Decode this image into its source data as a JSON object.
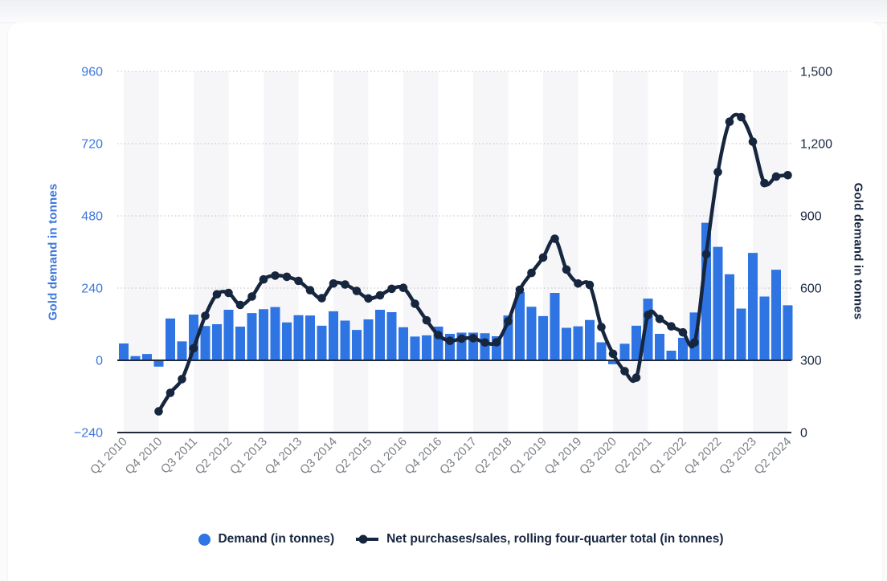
{
  "axes": {
    "left_title": "Gold demand in tonnes",
    "right_title": "Gold demand in tonnes"
  },
  "legend": {
    "items": [
      {
        "label": "Demand (in tonnes)",
        "marker": "circle"
      },
      {
        "label": "Net purchases/sales, rolling four-quarter total (in tonnes)",
        "marker": "line-dot"
      }
    ]
  },
  "colors": {
    "bar_blue": "#2e74e3",
    "line_navy": "#17263f",
    "left_axis_blue": "#3d77dd",
    "right_axis_navy": "#17263f",
    "x_label_gray": "#7d8187",
    "grid_dotted": "#c9cbd0",
    "axis_line": "#20293a",
    "stripe_gray": "#f6f6f8",
    "card_white": "#ffffff"
  },
  "chart_data": {
    "type": "bar+line",
    "title": "",
    "grid": "horizontal-dotted",
    "categories": [
      "Q1 2010",
      "Q2 2010",
      "Q3 2010",
      "Q4 2010",
      "Q1 2011",
      "Q2 2011",
      "Q3 2011",
      "Q4 2011",
      "Q1 2012",
      "Q2 2012",
      "Q3 2012",
      "Q4 2012",
      "Q1 2013",
      "Q2 2013",
      "Q3 2013",
      "Q4 2013",
      "Q1 2014",
      "Q2 2014",
      "Q3 2014",
      "Q4 2014",
      "Q1 2015",
      "Q2 2015",
      "Q3 2015",
      "Q4 2015",
      "Q1 2016",
      "Q2 2016",
      "Q3 2016",
      "Q4 2016",
      "Q1 2017",
      "Q2 2017",
      "Q3 2017",
      "Q4 2017",
      "Q1 2018",
      "Q2 2018",
      "Q3 2018",
      "Q4 2018",
      "Q1 2019",
      "Q2 2019",
      "Q3 2019",
      "Q4 2019",
      "Q1 2020",
      "Q2 2020",
      "Q3 2020",
      "Q4 2020",
      "Q1 2021",
      "Q2 2021",
      "Q3 2021",
      "Q4 2021",
      "Q1 2022",
      "Q2 2022",
      "Q3 2022",
      "Q4 2022",
      "Q1 2023",
      "Q2 2023",
      "Q3 2023",
      "Q4 2023",
      "Q1 2024",
      "Q2 2024"
    ],
    "x_tick_labels": [
      "Q1 2010",
      "Q4 2010",
      "Q3 2011",
      "Q2 2012",
      "Q1 2013",
      "Q4 2013",
      "Q3 2014",
      "Q2 2015",
      "Q1 2016",
      "Q4 2016",
      "Q3 2017",
      "Q2 2018",
      "Q1 2019",
      "Q4 2019",
      "Q3 2020",
      "Q2 2021",
      "Q1 2022",
      "Q4 2022",
      "Q3 2023",
      "Q2 2024"
    ],
    "series": [
      {
        "name": "Demand (in tonnes)",
        "type": "bar",
        "axis": "left",
        "values": [
          56,
          14,
          21,
          -21,
          139,
          63,
          152,
          114,
          120,
          168,
          112,
          157,
          170,
          177,
          126,
          150,
          149,
          115,
          163,
          132,
          101,
          136,
          168,
          160,
          110,
          79,
          83,
          112,
          88,
          92,
          92,
          90,
          80,
          149,
          227,
          178,
          147,
          224,
          108,
          113,
          134,
          60,
          -13,
          55,
          115,
          205,
          88,
          32,
          75,
          159,
          457,
          377,
          286,
          172,
          357,
          212,
          301,
          183
        ]
      },
      {
        "name": "Net purchases/sales, rolling four-quarter total (in tonnes)",
        "type": "line",
        "axis": "right",
        "start_index": 3,
        "values": [
          88,
          165,
          222,
          350,
          485,
          574,
          580,
          530,
          565,
          636,
          652,
          647,
          630,
          591,
          558,
          619,
          615,
          588,
          557,
          570,
          597,
          601,
          535,
          466,
          405,
          381,
          390,
          392,
          374,
          375,
          462,
          593,
          663,
          727,
          805,
          677,
          619,
          613,
          438,
          327,
          255,
          228,
          488,
          472,
          441,
          416,
          374,
          741,
          1082,
          1291,
          1310,
          1208,
          1036,
          1063,
          1069
        ]
      }
    ],
    "left_axis": {
      "label": "Gold demand in tonnes",
      "range": [
        -240,
        960
      ],
      "ticks": [
        960,
        720,
        480,
        240,
        0,
        -240
      ],
      "tick_labels": [
        "960",
        "720",
        "480",
        "240",
        "0",
        "−240"
      ]
    },
    "right_axis": {
      "label": "Gold demand in tonnes",
      "range": [
        0,
        1500
      ],
      "ticks": [
        1500,
        1200,
        900,
        600,
        300,
        0
      ],
      "tick_labels": [
        "1,500",
        "1,200",
        "900",
        "600",
        "300",
        "0"
      ]
    },
    "legend_position": "bottom"
  }
}
